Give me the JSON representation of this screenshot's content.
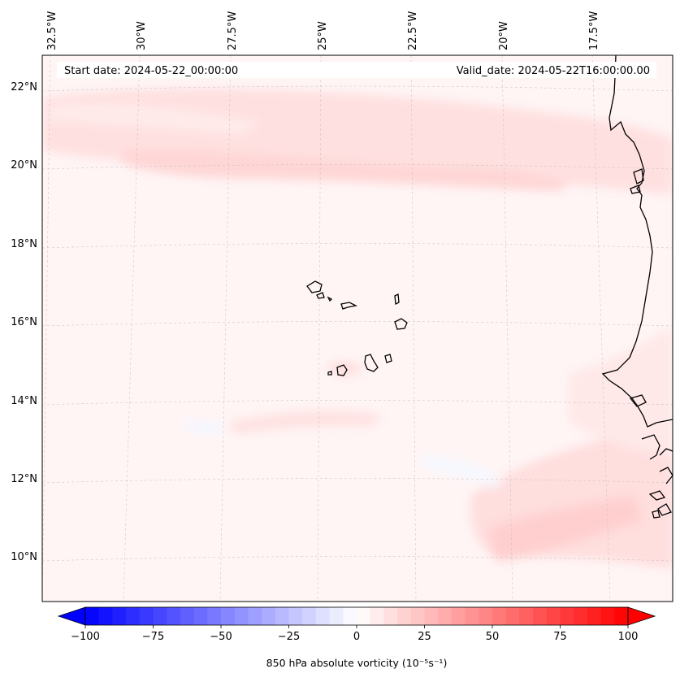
{
  "map": {
    "header": {
      "start_date": "Start date: 2024-05-22_00:00:00",
      "valid_date": "Valid_date: 2024-05-22T16:00:00.00"
    },
    "lon_labels": [
      "32.5°W",
      "30°W",
      "27.5°W",
      "25°W",
      "22.5°W",
      "20°W",
      "17.5°W"
    ],
    "lat_labels": [
      "22°N",
      "20°N",
      "18°N",
      "16°N",
      "14°N",
      "12°N",
      "10°N"
    ],
    "gridlines": true,
    "extent": {
      "lon_min": -32.6,
      "lon_max": -16.3,
      "lat_min": 8.9,
      "lat_max": 22.8
    }
  },
  "colorbar": {
    "label": "850 hPa absolute vorticity (10⁻⁵s⁻¹)",
    "ticks": [
      "−100",
      "−75",
      "−50",
      "−25",
      "0",
      "25",
      "50",
      "75",
      "100"
    ],
    "min": -100,
    "max": 100,
    "step": 5,
    "colormap": "bwr",
    "extend": "both",
    "colors": {
      "negative": "#0000ff",
      "zero": "#ffffff",
      "positive": "#ff0000"
    }
  }
}
